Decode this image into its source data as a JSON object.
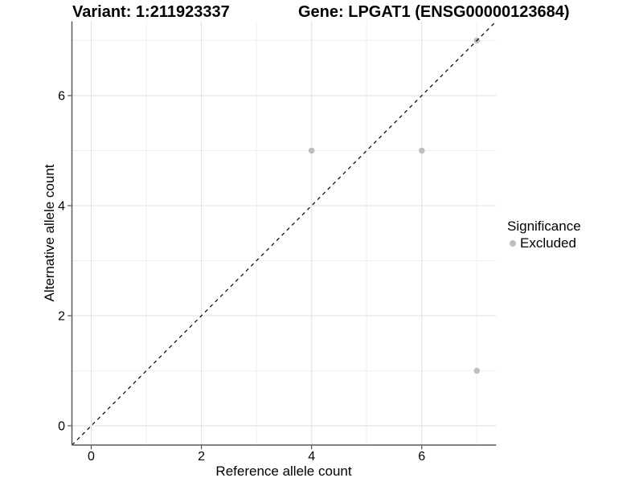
{
  "titles": {
    "variant": "Variant: 1:211923337",
    "gene": "Gene: LPGAT1 (ENSG00000123684)"
  },
  "chart_data": {
    "type": "scatter",
    "title_left": "Variant: 1:211923337",
    "title_right": "Gene: LPGAT1 (ENSG00000123684)",
    "xlabel": "Reference allele count",
    "ylabel": "Alternative allele count",
    "xlim": [
      -0.35,
      7.35
    ],
    "ylim": [
      -0.35,
      7.35
    ],
    "x_major_ticks": [
      0,
      2,
      4,
      6
    ],
    "y_major_ticks": [
      0,
      2,
      4,
      6
    ],
    "x_minor_grid": [
      1,
      3,
      5,
      7
    ],
    "y_minor_grid": [
      1,
      3,
      5,
      7
    ],
    "grid": "major and minor gridlines, white panel background",
    "identity_line": {
      "slope": 1,
      "intercept": 0,
      "style": "dashed",
      "color": "#000000"
    },
    "series": [
      {
        "name": "Excluded",
        "color": "#bebebe",
        "points": [
          [
            4,
            5
          ],
          [
            6,
            5
          ],
          [
            7,
            1
          ],
          [
            7,
            7
          ]
        ]
      }
    ],
    "legend": {
      "title": "Significance",
      "position": "right",
      "items": [
        {
          "label": "Excluded",
          "color": "#bebebe"
        }
      ]
    }
  },
  "colors": {
    "background": "#ffffff",
    "text": "#000000",
    "axis_line": "#595959",
    "tick_mark": "#4d4d4d",
    "grid_major": "#e2e2e2",
    "grid_minor": "#efefef",
    "point": "#bebebe",
    "identity_line": "#000000"
  }
}
